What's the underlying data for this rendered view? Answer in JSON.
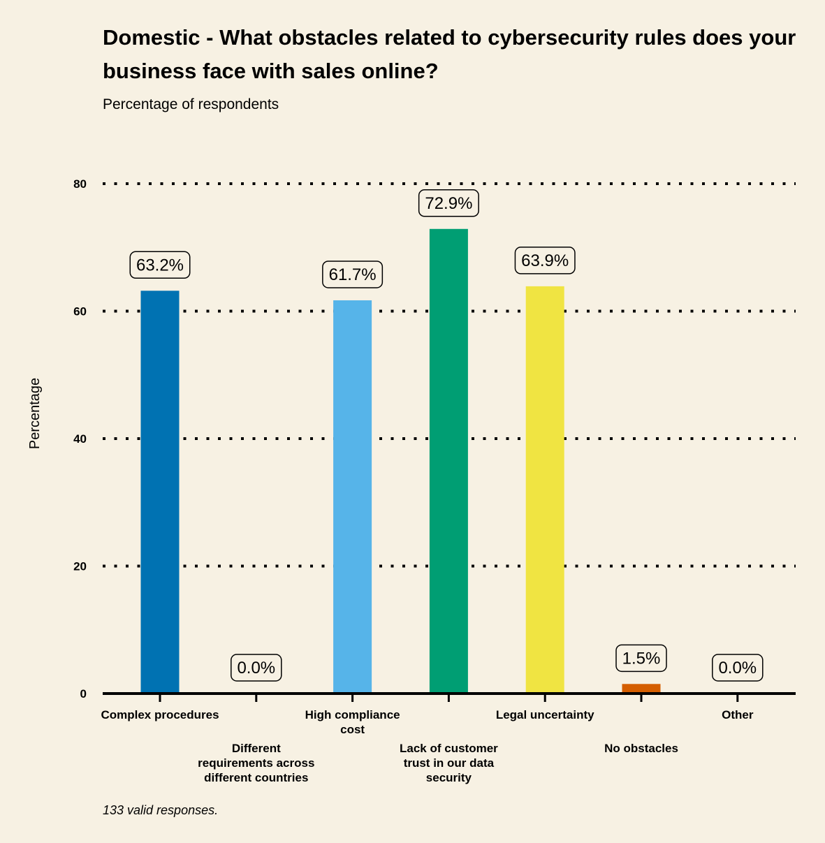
{
  "title": "Domestic - What obstacles related to cybersecurity rules does your business face with sales online?",
  "subtitle": "Percentage of respondents",
  "footnote": "133 valid responses.",
  "chart_data": {
    "type": "bar",
    "ylabel": "Percentage",
    "xlabel": "",
    "ylim": [
      0,
      80
    ],
    "yticks": [
      0,
      20,
      40,
      60,
      80
    ],
    "grid": "horizontal dotted",
    "categories": [
      "Complex procedures",
      "Different requirements across different countries",
      "High compliance cost",
      "Lack of customer trust in our data security",
      "Legal uncertainty",
      "No obstacles",
      "Other"
    ],
    "category_lines": [
      [
        "Complex procedures"
      ],
      [
        "Different",
        "requirements across",
        "different countries"
      ],
      [
        "High compliance",
        "cost"
      ],
      [
        "Lack of customer",
        "trust in our data",
        "security"
      ],
      [
        "Legal uncertainty"
      ],
      [
        "No obstacles"
      ],
      [
        "Other"
      ]
    ],
    "values": [
      63.2,
      0.0,
      61.7,
      72.9,
      63.9,
      1.5,
      0.0
    ],
    "data_labels": [
      "63.2%",
      "0.0%",
      "61.7%",
      "72.9%",
      "63.9%",
      "1.5%",
      "0.0%"
    ],
    "colors": [
      "#0072b2",
      "#e69f00",
      "#56b4e9",
      "#009e73",
      "#f0e442",
      "#d55e00",
      "#cc79a7"
    ]
  }
}
